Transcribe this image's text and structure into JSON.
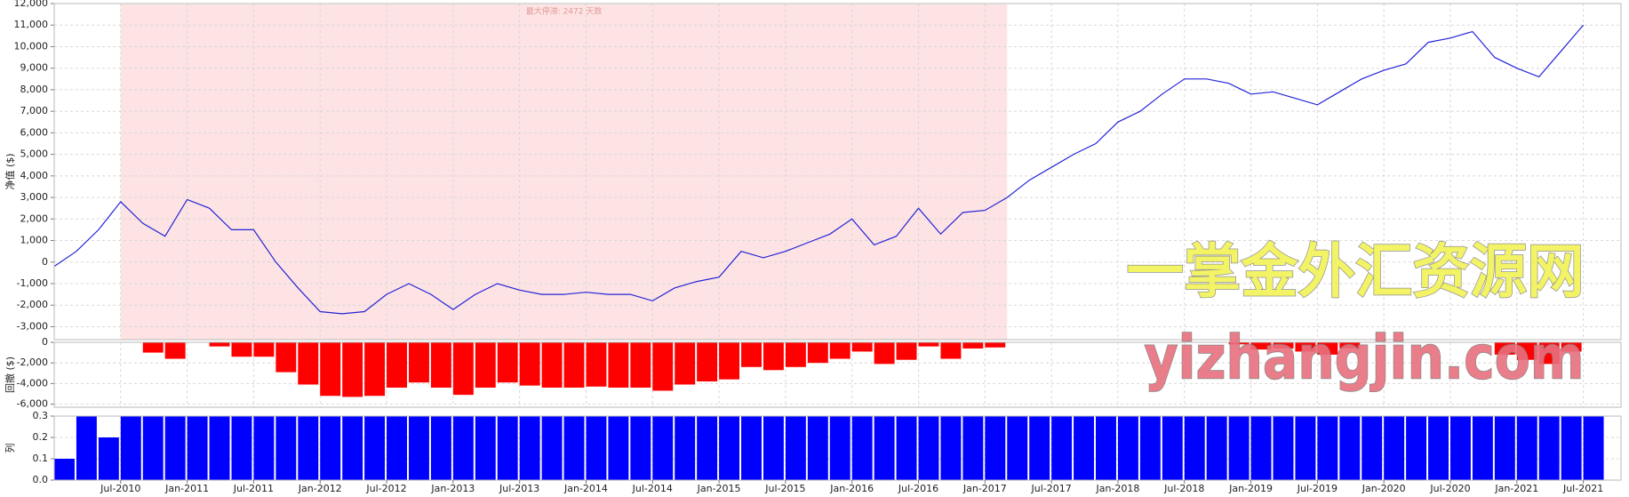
{
  "chart_data": [
    {
      "type": "line",
      "y_label": "净值 ($)",
      "annotation": "最大停滞: 2472 天数",
      "x": [
        "Jan-2010",
        "Mar-2010",
        "May-2010",
        "Jul-2010",
        "Sep-2010",
        "Nov-2010",
        "Jan-2011",
        "Mar-2011",
        "May-2011",
        "Jul-2011",
        "Sep-2011",
        "Nov-2011",
        "Jan-2012",
        "Mar-2012",
        "May-2012",
        "Jul-2012",
        "Sep-2012",
        "Nov-2012",
        "Jan-2013",
        "Mar-2013",
        "May-2013",
        "Jul-2013",
        "Sep-2013",
        "Nov-2013",
        "Jan-2014",
        "Mar-2014",
        "May-2014",
        "Jul-2014",
        "Sep-2014",
        "Nov-2014",
        "Jan-2015",
        "Mar-2015",
        "May-2015",
        "Jul-2015",
        "Sep-2015",
        "Nov-2015",
        "Jan-2016",
        "Mar-2016",
        "May-2016",
        "Jul-2016",
        "Sep-2016",
        "Nov-2016",
        "Jan-2017",
        "Mar-2017",
        "May-2017",
        "Jul-2017",
        "Sep-2017",
        "Nov-2017",
        "Jan-2018",
        "Mar-2018",
        "May-2018",
        "Jul-2018",
        "Sep-2018",
        "Nov-2018",
        "Jan-2019",
        "Mar-2019",
        "May-2019",
        "Jul-2019",
        "Sep-2019",
        "Nov-2019",
        "Jan-2020",
        "Mar-2020",
        "May-2020",
        "Jul-2020",
        "Sep-2020",
        "Nov-2020",
        "Jan-2021",
        "Mar-2021",
        "May-2021",
        "Jul-2021"
      ],
      "values": [
        -200,
        500,
        1500,
        2800,
        1800,
        1200,
        2900,
        2500,
        1500,
        1500,
        0,
        -1200,
        -2300,
        -2400,
        -2300,
        -1500,
        -1000,
        -1500,
        -2200,
        -1500,
        -1000,
        -1300,
        -1500,
        -1500,
        -1400,
        -1500,
        -1500,
        -1800,
        -1200,
        -900,
        -700,
        500,
        200,
        500,
        900,
        1300,
        2000,
        800,
        1200,
        2500,
        1300,
        2300,
        2400,
        3000,
        3800,
        4400,
        5000,
        5500,
        6500,
        7000,
        7800,
        8500,
        8500,
        8300,
        7800,
        7900,
        7600,
        7300,
        7900,
        8500,
        8900,
        9200,
        10200,
        10400,
        10700,
        9500,
        9000,
        8600,
        9800,
        11000
      ],
      "color": "#2424d8",
      "ylim": [
        -3600,
        12000
      ],
      "yticks": [
        {
          "value": -3000,
          "label": "-3,000"
        },
        {
          "value": -2000,
          "label": "-2,000"
        },
        {
          "value": -1000,
          "label": "-1,000"
        },
        0,
        {
          "value": 1000,
          "label": "1,000"
        },
        {
          "value": 2000,
          "label": "2,000"
        },
        {
          "value": 3000,
          "label": "3,000"
        },
        {
          "value": 4000,
          "label": "4,000"
        },
        {
          "value": 5000,
          "label": "5,000"
        },
        {
          "value": 6000,
          "label": "6,000"
        },
        {
          "value": 7000,
          "label": "7,000"
        },
        {
          "value": 8000,
          "label": "8,000"
        },
        {
          "value": 9000,
          "label": "9,000"
        },
        {
          "value": 10000,
          "label": "10,000"
        },
        {
          "value": 11000,
          "label": "11,000"
        },
        {
          "value": 12000,
          "label": "12,000"
        }
      ],
      "grid": true,
      "stagnation": {
        "from": "Jul-2010",
        "to": "Mar-2017",
        "color": "#fde3e3"
      }
    },
    {
      "type": "bar",
      "y_label": "回撤 ($)",
      "values": [
        0,
        0,
        0,
        0,
        -1000,
        -1600,
        0,
        -400,
        -1400,
        -1400,
        -2900,
        -4100,
        -5200,
        -5300,
        -5200,
        -4400,
        -3900,
        -4400,
        -5100,
        -4400,
        -3900,
        -4200,
        -4400,
        -4400,
        -4300,
        -4400,
        -4400,
        -4700,
        -4100,
        -3800,
        -3600,
        -2400,
        -2700,
        -2400,
        -2000,
        -1600,
        -900,
        -2100,
        -1700,
        -400,
        -1600,
        -600,
        -500,
        0,
        0,
        0,
        0,
        0,
        0,
        0,
        0,
        0,
        0,
        -200,
        -700,
        -600,
        -900,
        -1200,
        -600,
        0,
        0,
        0,
        0,
        0,
        0,
        -1200,
        -1700,
        -2100,
        -900,
        0
      ],
      "color": "#ff0000",
      "ylim": [
        -6300,
        0
      ],
      "yticks": [
        {
          "value": -6000,
          "label": "-6,000"
        },
        {
          "value": -4000,
          "label": "-4,000"
        },
        {
          "value": -2000,
          "label": "-2,000"
        },
        0
      ],
      "grid": true
    },
    {
      "type": "bar",
      "y_label": "列",
      "values": [
        0.1,
        0.3,
        0.2,
        0.3,
        0.3,
        0.3,
        0.3,
        0.3,
        0.3,
        0.3,
        0.3,
        0.3,
        0.3,
        0.3,
        0.3,
        0.3,
        0.3,
        0.3,
        0.3,
        0.3,
        0.3,
        0.3,
        0.3,
        0.3,
        0.3,
        0.3,
        0.3,
        0.3,
        0.3,
        0.3,
        0.3,
        0.3,
        0.3,
        0.3,
        0.3,
        0.3,
        0.3,
        0.3,
        0.3,
        0.3,
        0.3,
        0.3,
        0.3,
        0.3,
        0.3,
        0.3,
        0.3,
        0.3,
        0.3,
        0.3,
        0.3,
        0.3,
        0.3,
        0.3,
        0.3,
        0.3,
        0.3,
        0.3,
        0.3,
        0.3,
        0.3,
        0.3,
        0.3,
        0.3,
        0.3,
        0.3,
        0.3,
        0.3,
        0.3,
        0.3
      ],
      "color": "#0000ff",
      "ylim": [
        0,
        0.3
      ],
      "yticks": [
        {
          "value": 0,
          "label": "0.0"
        },
        0.1,
        0.2,
        0.3
      ],
      "xticks": [
        "Jul-2010",
        "Jan-2011",
        "Jul-2011",
        "Jan-2012",
        "Jul-2012",
        "Jan-2013",
        "Jul-2013",
        "Jan-2014",
        "Jul-2014",
        "Jan-2015",
        "Jul-2015",
        "Jan-2016",
        "Jul-2016",
        "Jan-2017",
        "Jul-2017",
        "Jan-2018",
        "Jul-2018",
        "Jan-2019",
        "Jul-2019",
        "Jan-2020",
        "Jul-2020",
        "Jan-2021",
        "Jul-2021"
      ],
      "grid": true
    }
  ],
  "watermark": {
    "line1": "一掌金外汇资源网",
    "line2": "yizhangjin.com"
  }
}
